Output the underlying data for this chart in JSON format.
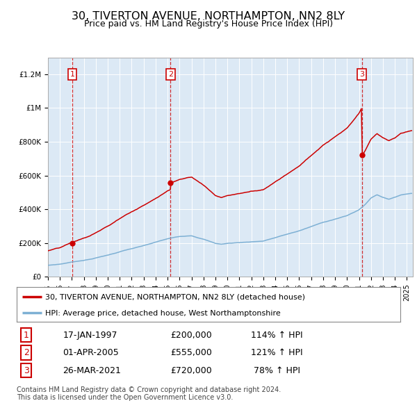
{
  "title": "30, TIVERTON AVENUE, NORTHAMPTON, NN2 8LY",
  "subtitle": "Price paid vs. HM Land Registry's House Price Index (HPI)",
  "bg_color": "#dce9f5",
  "sale1_date": 1997.04,
  "sale1_price": 200000,
  "sale2_date": 2005.25,
  "sale2_price": 555000,
  "sale3_date": 2021.23,
  "sale3_price": 720000,
  "sale_color": "#cc0000",
  "hpi_color": "#7db0d4",
  "legend1": "30, TIVERTON AVENUE, NORTHAMPTON, NN2 8LY (detached house)",
  "legend2": "HPI: Average price, detached house, West Northamptonshire",
  "table_row1": [
    "1",
    "17-JAN-1997",
    "£200,000",
    "114% ↑ HPI"
  ],
  "table_row2": [
    "2",
    "01-APR-2005",
    "£555,000",
    "121% ↑ HPI"
  ],
  "table_row3": [
    "3",
    "26-MAR-2021",
    "£720,000",
    " 78% ↑ HPI"
  ],
  "footer": "Contains HM Land Registry data © Crown copyright and database right 2024.\nThis data is licensed under the Open Government Licence v3.0.",
  "ylim_max": 1300000,
  "xlim_start": 1995.0,
  "xlim_end": 2025.5
}
